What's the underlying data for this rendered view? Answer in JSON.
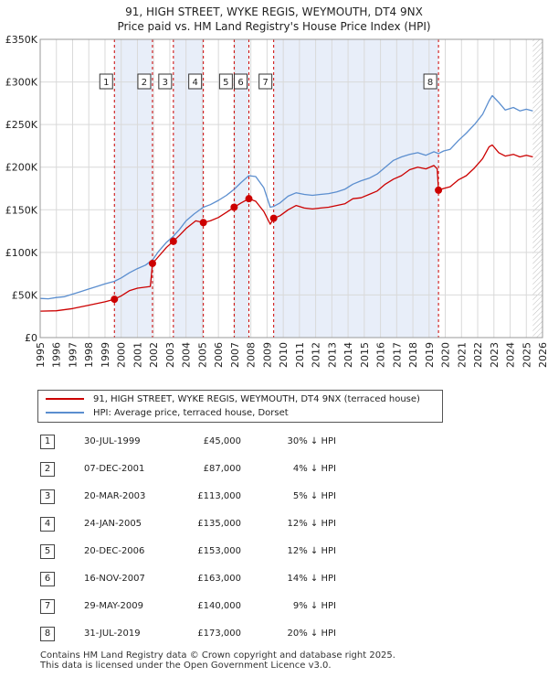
{
  "title_line1": "91, HIGH STREET, WYKE REGIS, WEYMOUTH, DT4 9NX",
  "title_line2": "Price paid vs. HM Land Registry's House Price Index (HPI)",
  "chart_data": {
    "type": "line",
    "title": "91, HIGH STREET, WYKE REGIS, WEYMOUTH, DT4 9NX - Price paid vs. HM Land Registry's House Price Index (HPI)",
    "xlim": [
      1995,
      2026
    ],
    "ylim": [
      0,
      350000
    ],
    "yticks": [
      0,
      50000,
      100000,
      150000,
      200000,
      250000,
      300000,
      350000
    ],
    "ytick_labels": [
      "£0",
      "£50K",
      "£100K",
      "£150K",
      "£200K",
      "£250K",
      "£300K",
      "£350K"
    ],
    "xticks": [
      1995,
      1996,
      1997,
      1998,
      1999,
      2000,
      2001,
      2002,
      2003,
      2004,
      2005,
      2006,
      2007,
      2008,
      2009,
      2010,
      2011,
      2012,
      2013,
      2014,
      2015,
      2016,
      2017,
      2018,
      2019,
      2020,
      2021,
      2022,
      2023,
      2024,
      2025,
      2026
    ],
    "grid": true,
    "series": [
      {
        "name": "91, HIGH STREET, WYKE REGIS, WEYMOUTH, DT4 9NX (terraced house)",
        "color": "#cc0000",
        "points": [
          [
            1995.0,
            31000
          ],
          [
            1996.0,
            31500
          ],
          [
            1997.0,
            34000
          ],
          [
            1998.0,
            38000
          ],
          [
            1999.0,
            42000
          ],
          [
            1999.58,
            45000
          ],
          [
            2000.0,
            49000
          ],
          [
            2000.5,
            55000
          ],
          [
            2001.0,
            58000
          ],
          [
            2001.8,
            60000
          ],
          [
            2001.93,
            87000
          ],
          [
            2002.3,
            95000
          ],
          [
            2002.8,
            106000
          ],
          [
            2003.22,
            113000
          ],
          [
            2003.6,
            120000
          ],
          [
            2004.0,
            128000
          ],
          [
            2004.6,
            137000
          ],
          [
            2005.07,
            135000
          ],
          [
            2005.5,
            137000
          ],
          [
            2006.0,
            141000
          ],
          [
            2006.5,
            147000
          ],
          [
            2006.97,
            153000
          ],
          [
            2007.4,
            158000
          ],
          [
            2007.88,
            163000
          ],
          [
            2008.3,
            160000
          ],
          [
            2008.8,
            148000
          ],
          [
            2009.2,
            133000
          ],
          [
            2009.41,
            140000
          ],
          [
            2009.8,
            143000
          ],
          [
            2010.3,
            150000
          ],
          [
            2010.8,
            155000
          ],
          [
            2011.3,
            152000
          ],
          [
            2011.8,
            151000
          ],
          [
            2012.3,
            152000
          ],
          [
            2012.8,
            153000
          ],
          [
            2013.3,
            155000
          ],
          [
            2013.8,
            157000
          ],
          [
            2014.3,
            163000
          ],
          [
            2014.8,
            164000
          ],
          [
            2015.3,
            168000
          ],
          [
            2015.8,
            172000
          ],
          [
            2016.3,
            180000
          ],
          [
            2016.8,
            186000
          ],
          [
            2017.3,
            190000
          ],
          [
            2017.8,
            197000
          ],
          [
            2018.3,
            200000
          ],
          [
            2018.8,
            198000
          ],
          [
            2019.3,
            202000
          ],
          [
            2019.5,
            198000
          ],
          [
            2019.58,
            173000
          ],
          [
            2019.9,
            175000
          ],
          [
            2020.3,
            177000
          ],
          [
            2020.8,
            185000
          ],
          [
            2021.3,
            190000
          ],
          [
            2021.8,
            199000
          ],
          [
            2022.3,
            210000
          ],
          [
            2022.7,
            224000
          ],
          [
            2022.9,
            226000
          ],
          [
            2023.3,
            217000
          ],
          [
            2023.7,
            213000
          ],
          [
            2024.2,
            215000
          ],
          [
            2024.6,
            212000
          ],
          [
            2025.0,
            214000
          ],
          [
            2025.4,
            212000
          ]
        ]
      },
      {
        "name": "HPI: Average price, terraced house, Dorset",
        "color": "#5b8ecf",
        "points": [
          [
            1995.0,
            46000
          ],
          [
            1995.5,
            45500
          ],
          [
            1996.0,
            47000
          ],
          [
            1996.5,
            48000
          ],
          [
            1997.0,
            51000
          ],
          [
            1997.5,
            54000
          ],
          [
            1998.0,
            57000
          ],
          [
            1998.5,
            60000
          ],
          [
            1999.0,
            63000
          ],
          [
            1999.58,
            66000
          ],
          [
            2000.0,
            70000
          ],
          [
            2000.5,
            76000
          ],
          [
            2001.0,
            81000
          ],
          [
            2001.5,
            85000
          ],
          [
            2001.93,
            91000
          ],
          [
            2002.3,
            101000
          ],
          [
            2002.8,
            112000
          ],
          [
            2003.22,
            119000
          ],
          [
            2003.6,
            127000
          ],
          [
            2004.0,
            137000
          ],
          [
            2004.5,
            145000
          ],
          [
            2005.07,
            153000
          ],
          [
            2005.5,
            156000
          ],
          [
            2006.0,
            161000
          ],
          [
            2006.5,
            167000
          ],
          [
            2006.97,
            174000
          ],
          [
            2007.4,
            182000
          ],
          [
            2007.88,
            190000
          ],
          [
            2008.3,
            189000
          ],
          [
            2008.8,
            176000
          ],
          [
            2009.2,
            153000
          ],
          [
            2009.41,
            154000
          ],
          [
            2009.8,
            158000
          ],
          [
            2010.3,
            166000
          ],
          [
            2010.8,
            170000
          ],
          [
            2011.3,
            168000
          ],
          [
            2011.8,
            167000
          ],
          [
            2012.3,
            168000
          ],
          [
            2012.8,
            169000
          ],
          [
            2013.3,
            171000
          ],
          [
            2013.8,
            174000
          ],
          [
            2014.3,
            180000
          ],
          [
            2014.8,
            184000
          ],
          [
            2015.3,
            187000
          ],
          [
            2015.8,
            192000
          ],
          [
            2016.3,
            200000
          ],
          [
            2016.8,
            208000
          ],
          [
            2017.3,
            212000
          ],
          [
            2017.8,
            215000
          ],
          [
            2018.3,
            217000
          ],
          [
            2018.8,
            214000
          ],
          [
            2019.3,
            218000
          ],
          [
            2019.58,
            216000
          ],
          [
            2019.9,
            219000
          ],
          [
            2020.3,
            221000
          ],
          [
            2020.8,
            231000
          ],
          [
            2021.3,
            240000
          ],
          [
            2021.8,
            250000
          ],
          [
            2022.3,
            262000
          ],
          [
            2022.7,
            278000
          ],
          [
            2022.9,
            284000
          ],
          [
            2023.3,
            276000
          ],
          [
            2023.7,
            267000
          ],
          [
            2024.2,
            270000
          ],
          [
            2024.6,
            266000
          ],
          [
            2025.0,
            268000
          ],
          [
            2025.4,
            266000
          ]
        ]
      }
    ],
    "sales": [
      {
        "num": "1",
        "x": 1999.58,
        "y": 45000
      },
      {
        "num": "2",
        "x": 2001.93,
        "y": 87000
      },
      {
        "num": "3",
        "x": 2003.22,
        "y": 113000
      },
      {
        "num": "4",
        "x": 2005.07,
        "y": 135000
      },
      {
        "num": "5",
        "x": 2006.97,
        "y": 153000
      },
      {
        "num": "6",
        "x": 2007.88,
        "y": 163000
      },
      {
        "num": "7",
        "x": 2009.41,
        "y": 140000
      },
      {
        "num": "8",
        "x": 2019.58,
        "y": 173000
      }
    ],
    "shaded_spans": [
      [
        1999.58,
        2001.93
      ],
      [
        2003.22,
        2005.07
      ],
      [
        2006.97,
        2007.88
      ],
      [
        2009.41,
        2019.58
      ]
    ],
    "future_hatch_from": 2025.4
  },
  "legend": {
    "red_label": "91, HIGH STREET, WYKE REGIS, WEYMOUTH, DT4 9NX (terraced house)",
    "blue_label": "HPI: Average price, terraced house, Dorset",
    "red_color": "#cc0000",
    "blue_color": "#5b8ecf"
  },
  "table": [
    {
      "num": "1",
      "date": "30-JUL-1999",
      "price": "£45,000",
      "hpi": "30% ↓ HPI"
    },
    {
      "num": "2",
      "date": "07-DEC-2001",
      "price": "£87,000",
      "hpi": "4% ↓ HPI"
    },
    {
      "num": "3",
      "date": "20-MAR-2003",
      "price": "£113,000",
      "hpi": "5% ↓ HPI"
    },
    {
      "num": "4",
      "date": "24-JAN-2005",
      "price": "£135,000",
      "hpi": "12% ↓ HPI"
    },
    {
      "num": "5",
      "date": "20-DEC-2006",
      "price": "£153,000",
      "hpi": "12% ↓ HPI"
    },
    {
      "num": "6",
      "date": "16-NOV-2007",
      "price": "£163,000",
      "hpi": "14% ↓ HPI"
    },
    {
      "num": "7",
      "date": "29-MAY-2009",
      "price": "£140,000",
      "hpi": "9% ↓ HPI"
    },
    {
      "num": "8",
      "date": "31-JUL-2019",
      "price": "£173,000",
      "hpi": "20% ↓ HPI"
    }
  ],
  "footer": {
    "line1": "Contains HM Land Registry data © Crown copyright and database right 2025.",
    "line2": "This data is licensed under the Open Government Licence v3.0."
  }
}
